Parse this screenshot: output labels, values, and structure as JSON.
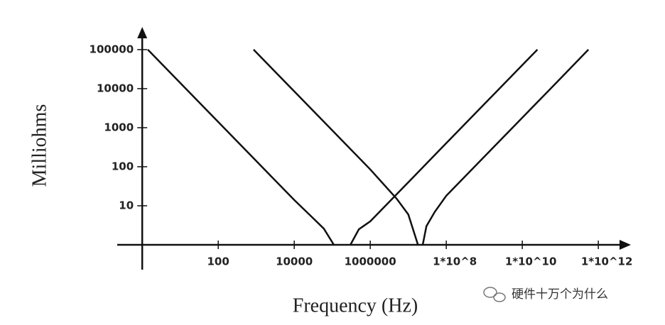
{
  "chart_data": {
    "type": "line",
    "xlabel": "Frequency (Hz)",
    "ylabel": "Milliohms",
    "xscale": "log",
    "yscale": "log",
    "xlim": [
      0.22,
      7200000000000.0
    ],
    "ylim": [
      1,
      380000
    ],
    "xticks": [
      100,
      10000,
      1000000,
      {
        "value": 100000000,
        "label": "1*10^8"
      },
      {
        "value": 10000000000,
        "label": "1*10^10"
      },
      {
        "value": 1000000000000,
        "label": "1*10^12"
      }
    ],
    "yticks": [
      10,
      100,
      1000,
      10000,
      100000
    ],
    "series": [
      {
        "color": "#111111",
        "x": [
          1.4,
          10,
          100,
          1000,
          10000,
          30000,
          60000,
          110000
        ],
        "values": [
          100000,
          14000,
          1400,
          140,
          14,
          5,
          2.6,
          1
        ]
      },
      {
        "color": "#111111",
        "x": [
          300000,
          500000,
          1000000,
          10000000,
          100000000,
          1000000000,
          10000000000,
          25000000000
        ],
        "values": [
          1,
          2.5,
          4,
          40,
          400,
          4000,
          40000,
          100000
        ]
      },
      {
        "color": "#111111",
        "x": [
          850,
          10000,
          100000,
          1000000,
          5000000,
          10000000,
          18000000
        ],
        "values": [
          100000,
          8500,
          850,
          85,
          15,
          6,
          1
        ]
      },
      {
        "color": "#111111",
        "x": [
          24000000,
          30000000,
          50000000,
          100000000,
          1000000000,
          10000000000,
          100000000000,
          550000000000
        ],
        "values": [
          1,
          3,
          7,
          18,
          180,
          1800,
          18000,
          100000
        ]
      }
    ],
    "watermark": "硬件十万个为什么"
  }
}
